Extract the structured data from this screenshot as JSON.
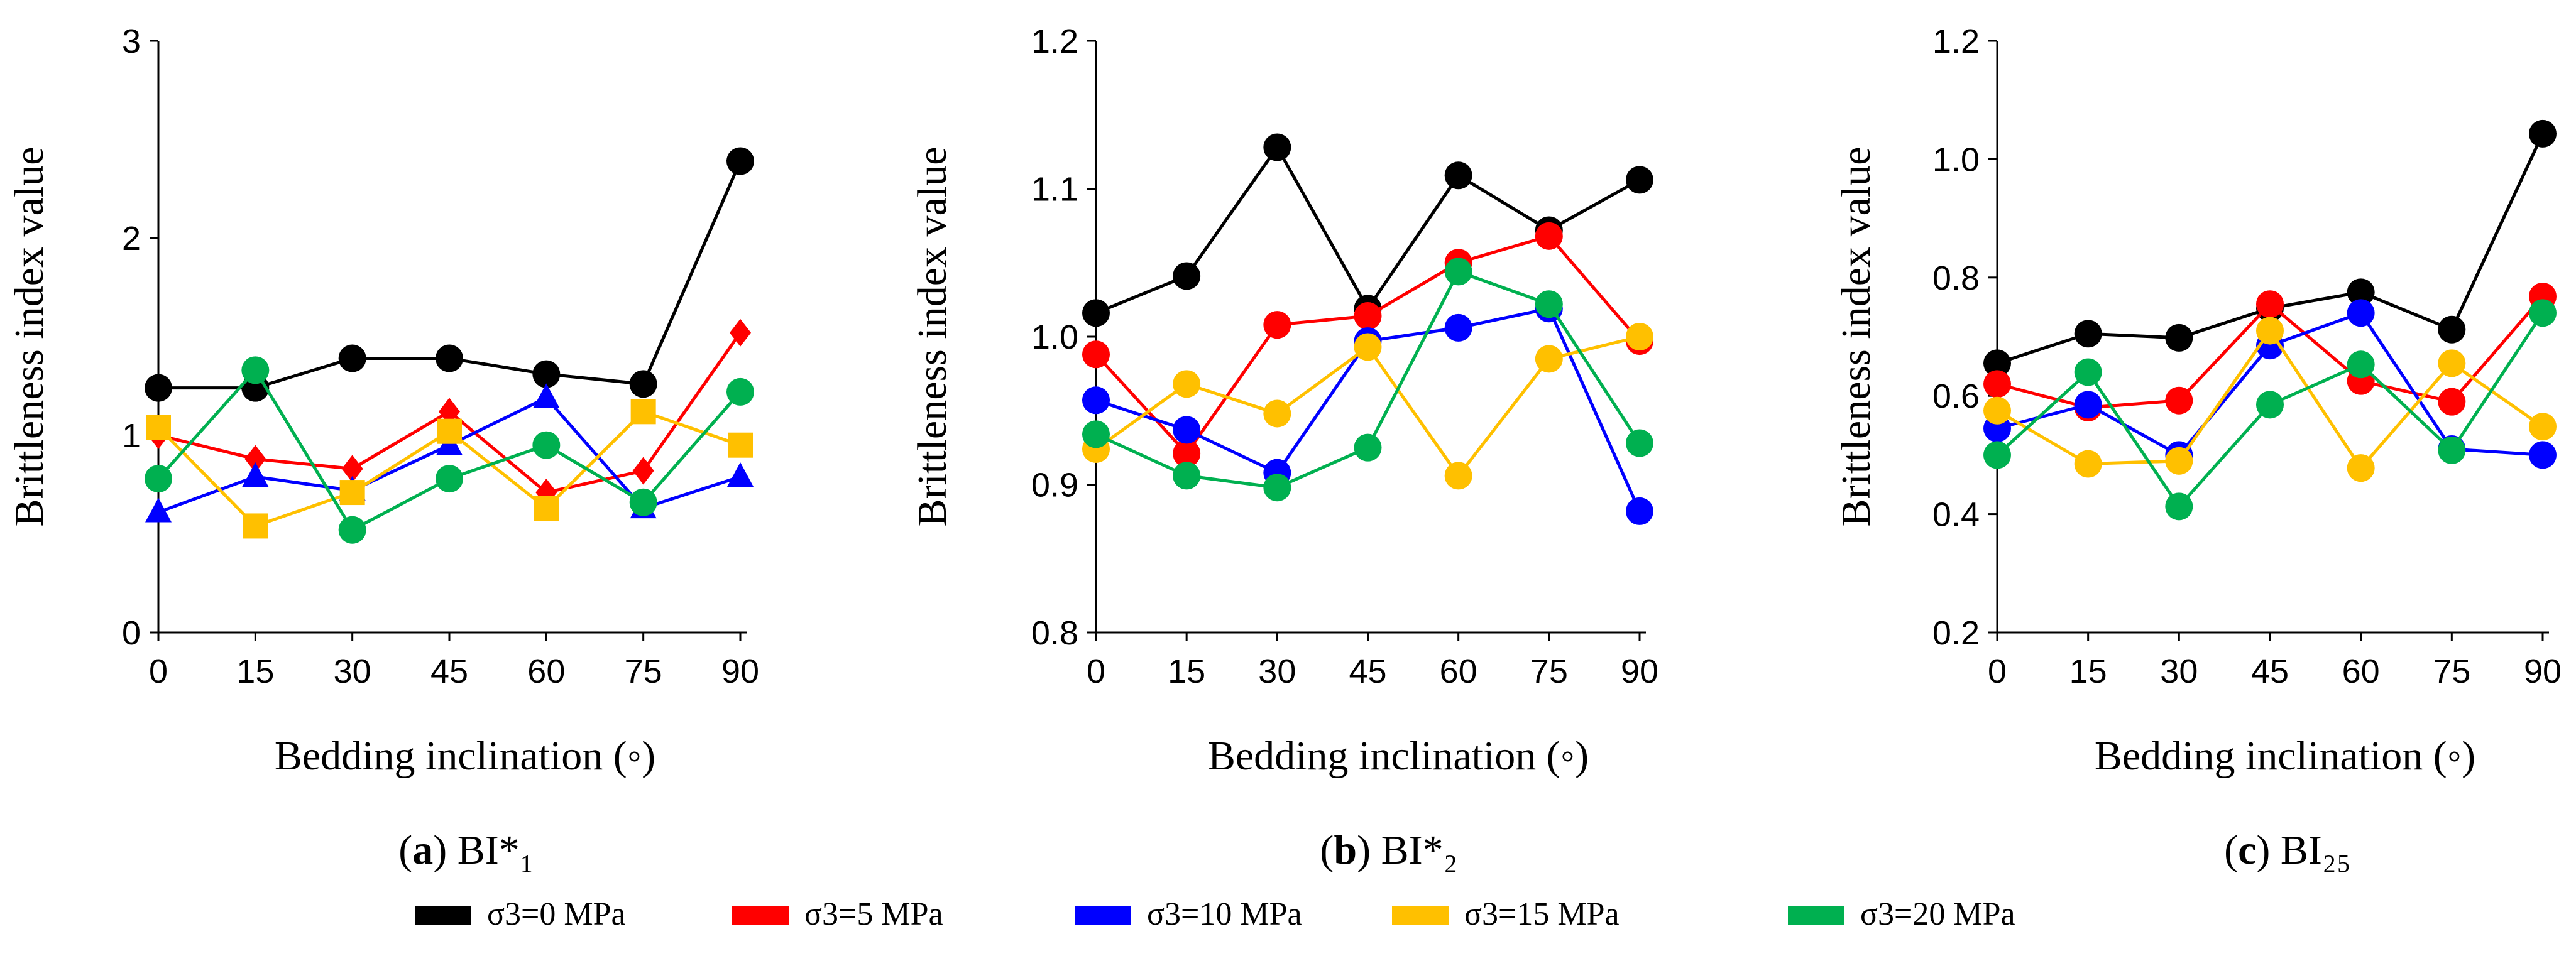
{
  "chart_data": [
    {
      "type": "line",
      "panel_label": "a",
      "caption_suffix": "BI*₁",
      "xlabel": "Bedding inclination (◦)",
      "ylabel": "Brittleness index value",
      "x": [
        0,
        15,
        30,
        45,
        60,
        75,
        90
      ],
      "ylim": [
        0,
        3
      ],
      "yticks": [
        0,
        1,
        2,
        3
      ],
      "ytick_labels": [
        "0",
        "1",
        "2",
        "3"
      ],
      "series": [
        {
          "name": "σ3=0 MPa",
          "color": "#000000",
          "marker": "circle",
          "values": [
            1.24,
            1.24,
            1.39,
            1.39,
            1.31,
            1.26,
            2.39
          ]
        },
        {
          "name": "σ3=5 MPa",
          "color": "#ff0000",
          "marker": "diamond",
          "values": [
            1.0,
            0.88,
            0.83,
            1.12,
            0.71,
            0.82,
            1.52
          ]
        },
        {
          "name": "σ3=10 MPa",
          "color": "#0000ff",
          "marker": "triangle",
          "values": [
            0.61,
            0.79,
            0.72,
            0.95,
            1.19,
            0.63,
            0.79
          ]
        },
        {
          "name": "σ3=15 MPa",
          "color": "#ffc000",
          "marker": "square",
          "values": [
            1.04,
            0.54,
            0.71,
            1.02,
            0.63,
            1.12,
            0.95
          ]
        },
        {
          "name": "σ3=20 MPa",
          "color": "#00b050",
          "marker": "circle",
          "values": [
            0.78,
            1.33,
            0.52,
            0.78,
            0.95,
            0.66,
            1.22
          ]
        }
      ]
    },
    {
      "type": "line",
      "panel_label": "b",
      "caption_suffix": "BI*₂",
      "xlabel": "Bedding inclination (◦)",
      "ylabel": "Brittleness index value",
      "x": [
        0,
        15,
        30,
        45,
        60,
        75,
        90
      ],
      "ylim": [
        0.8,
        1.2
      ],
      "yticks": [
        0.8,
        0.9,
        1.0,
        1.1,
        1.2
      ],
      "ytick_labels": [
        "0.8",
        "0.9",
        "1.0",
        "1.1",
        "1.2"
      ],
      "series": [
        {
          "name": "σ3=0 MPa",
          "color": "#000000",
          "marker": "circle",
          "values": [
            1.016,
            1.041,
            1.128,
            1.019,
            1.109,
            1.072,
            1.106
          ]
        },
        {
          "name": "σ3=5 MPa",
          "color": "#ff0000",
          "marker": "circle",
          "values": [
            0.988,
            0.921,
            1.008,
            1.014,
            1.05,
            1.068,
            0.997
          ]
        },
        {
          "name": "σ3=10 MPa",
          "color": "#0000ff",
          "marker": "circle",
          "values": [
            0.957,
            0.937,
            0.908,
            0.997,
            1.006,
            1.019,
            0.882
          ]
        },
        {
          "name": "σ3=15 MPa",
          "color": "#ffc000",
          "marker": "circle",
          "values": [
            0.924,
            0.968,
            0.948,
            0.993,
            0.906,
            0.985,
            1.0
          ]
        },
        {
          "name": "σ3=20 MPa",
          "color": "#00b050",
          "marker": "circle",
          "values": [
            0.934,
            0.906,
            0.898,
            0.925,
            1.044,
            1.022,
            0.928
          ]
        }
      ]
    },
    {
      "type": "line",
      "panel_label": "c",
      "caption_suffix": "BI₂₅",
      "xlabel": "Bedding inclination (◦)",
      "ylabel": "Brittleness index value",
      "x": [
        0,
        15,
        30,
        45,
        60,
        75,
        90
      ],
      "ylim": [
        0.2,
        1.2
      ],
      "yticks": [
        0.2,
        0.4,
        0.6,
        0.8,
        1.0,
        1.2
      ],
      "ytick_labels": [
        "0.2",
        "0.4",
        "0.6",
        "0.8",
        "1.0",
        "1.2"
      ],
      "series": [
        {
          "name": "σ3=0 MPa",
          "color": "#000000",
          "marker": "circle",
          "values": [
            0.655,
            0.705,
            0.698,
            0.748,
            0.775,
            0.712,
            1.043
          ]
        },
        {
          "name": "σ3=5 MPa",
          "color": "#ff0000",
          "marker": "circle",
          "values": [
            0.62,
            0.58,
            0.592,
            0.755,
            0.625,
            0.59,
            0.768
          ]
        },
        {
          "name": "σ3=10 MPa",
          "color": "#0000ff",
          "marker": "circle",
          "values": [
            0.545,
            0.585,
            0.5,
            0.685,
            0.74,
            0.51,
            0.5
          ]
        },
        {
          "name": "σ3=15 MPa",
          "color": "#ffc000",
          "marker": "circle",
          "values": [
            0.575,
            0.485,
            0.49,
            0.71,
            0.478,
            0.655,
            0.548
          ]
        },
        {
          "name": "σ3=20 MPa",
          "color": "#00b050",
          "marker": "circle",
          "values": [
            0.5,
            0.64,
            0.413,
            0.585,
            0.653,
            0.508,
            0.74
          ]
        }
      ]
    }
  ],
  "legend": [
    {
      "name": "σ3=0 MPa",
      "color": "#000000"
    },
    {
      "name": "σ3=5 MPa",
      "color": "#ff0000"
    },
    {
      "name": "σ3=10 MPa",
      "color": "#0000ff"
    },
    {
      "name": "σ3=15 MPa",
      "color": "#ffc000"
    },
    {
      "name": "σ3=20 MPa",
      "color": "#00b050"
    }
  ]
}
